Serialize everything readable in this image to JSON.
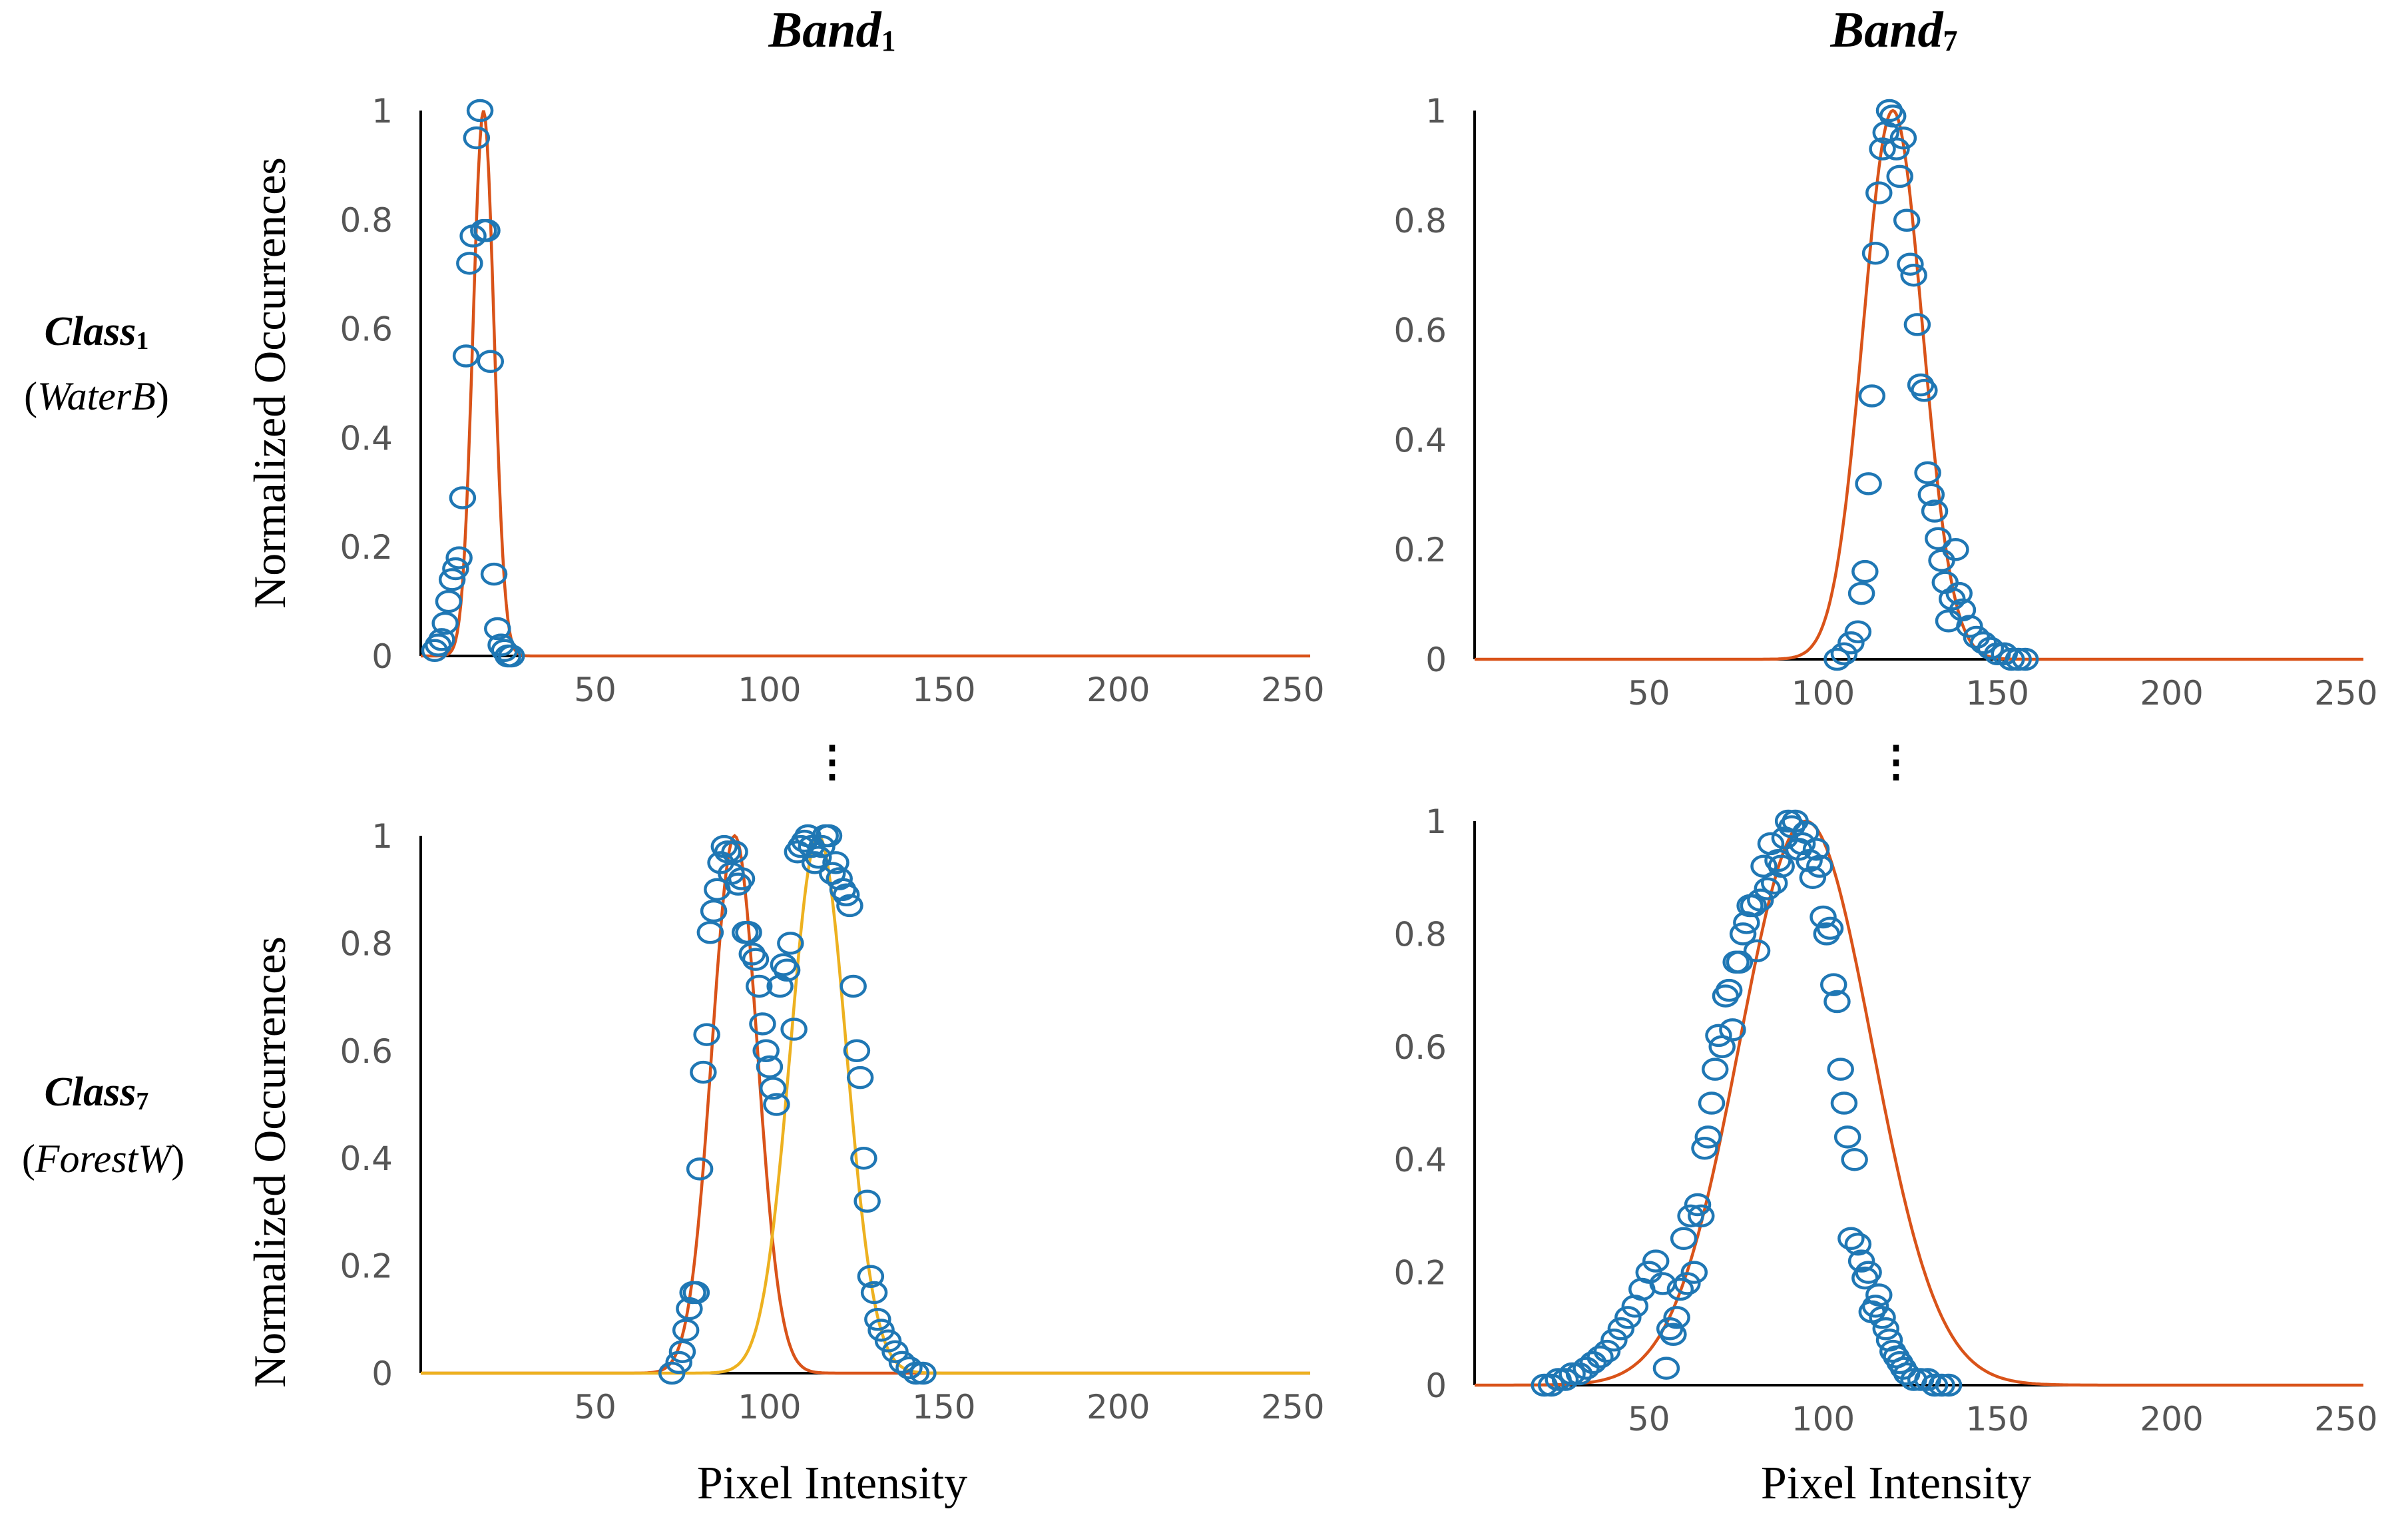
{
  "figure": {
    "col_titles": [
      {
        "main": "Band",
        "sub": "1"
      },
      {
        "main": "Band",
        "sub": "7"
      }
    ],
    "row_titles": [
      {
        "main": "Class",
        "sub": "1",
        "open": "(",
        "name": "WaterB",
        "close": ")"
      },
      {
        "main": "Class",
        "sub": "7",
        "open": "(",
        "name": "ForestW",
        "close": ")"
      }
    ],
    "ylabel": "Normalized Occurrences",
    "xlabel": "Pixel Intensity",
    "ellipsis": "⋮",
    "colors": {
      "points": "#1f77b4",
      "fit1": "#d95319",
      "fit2": "#edb120",
      "axis": "#000000"
    }
  },
  "chart_data": [
    {
      "type": "scatter",
      "title": "Class1 (WaterB) - Band1",
      "xlim": [
        0,
        255
      ],
      "ylim": [
        0,
        1
      ],
      "xticks": [
        50,
        100,
        150,
        200,
        250
      ],
      "yticks": [
        0,
        0.2,
        0.4,
        0.6,
        0.8,
        1
      ],
      "series": [
        {
          "name": "Normalized histogram",
          "kind": "points",
          "x": [
            4,
            5,
            6,
            7,
            8,
            9,
            10,
            11,
            12,
            13,
            14,
            15,
            16,
            17,
            18,
            19,
            20,
            21,
            22,
            23,
            24,
            25,
            26
          ],
          "y": [
            0.01,
            0.02,
            0.03,
            0.06,
            0.1,
            0.14,
            0.16,
            0.18,
            0.29,
            0.55,
            0.72,
            0.77,
            0.95,
            1.0,
            0.78,
            0.78,
            0.54,
            0.15,
            0.05,
            0.02,
            0.01,
            0.0,
            0.0
          ]
        },
        {
          "name": "Gaussian fit",
          "kind": "gaussian",
          "mu": 18,
          "sigma": 3.0,
          "amp": 1
        }
      ]
    },
    {
      "type": "scatter",
      "title": "Class1 (WaterB) - Band7",
      "xlim": [
        0,
        255
      ],
      "ylim": [
        0,
        1
      ],
      "xticks": [
        50,
        100,
        150,
        200,
        250
      ],
      "yticks": [
        0,
        0.2,
        0.4,
        0.6,
        0.8,
        1
      ],
      "series": [
        {
          "name": "Normalized histogram",
          "kind": "points",
          "x": [
            104,
            106,
            108,
            110,
            111,
            112,
            113,
            114,
            115,
            116,
            117,
            118,
            119,
            120,
            121,
            122,
            123,
            124,
            125,
            126,
            127,
            128,
            129,
            130,
            131,
            132,
            133,
            134,
            135,
            136,
            137,
            138,
            139,
            140,
            142,
            144,
            146,
            148,
            150,
            152,
            154,
            156,
            158
          ],
          "y": [
            0.0,
            0.01,
            0.03,
            0.05,
            0.12,
            0.16,
            0.32,
            0.48,
            0.74,
            0.85,
            0.93,
            0.96,
            1.0,
            0.99,
            0.93,
            0.88,
            0.95,
            0.8,
            0.72,
            0.7,
            0.61,
            0.5,
            0.49,
            0.34,
            0.3,
            0.27,
            0.22,
            0.18,
            0.14,
            0.07,
            0.11,
            0.2,
            0.12,
            0.09,
            0.06,
            0.04,
            0.03,
            0.02,
            0.01,
            0.01,
            0.0,
            0.0,
            0.0
          ]
        },
        {
          "name": "Gaussian fit",
          "kind": "gaussian",
          "mu": 120,
          "sigma": 8.5,
          "amp": 1
        }
      ]
    },
    {
      "type": "scatter",
      "title": "Class7 (ForestW) - Band1",
      "xlim": [
        0,
        255
      ],
      "ylim": [
        0,
        1
      ],
      "xticks": [
        50,
        100,
        150,
        200,
        250
      ],
      "yticks": [
        0,
        0.2,
        0.4,
        0.6,
        0.8,
        1
      ],
      "series": [
        {
          "name": "Normalized histogram",
          "kind": "points",
          "x": [
            72,
            74,
            75,
            76,
            77,
            78,
            79,
            80,
            81,
            82,
            83,
            84,
            85,
            86,
            87,
            88,
            89,
            90,
            91,
            92,
            93,
            94,
            95,
            96,
            97,
            98,
            99,
            100,
            101,
            102,
            103,
            104,
            105,
            106,
            107,
            108,
            109,
            110,
            111,
            112,
            113,
            114,
            115,
            116,
            117,
            118,
            119,
            120,
            121,
            122,
            123,
            124,
            125,
            126,
            127,
            128,
            129,
            130,
            131,
            132,
            134,
            136,
            138,
            140,
            142,
            144
          ],
          "y": [
            0.0,
            0.02,
            0.04,
            0.08,
            0.12,
            0.15,
            0.15,
            0.38,
            0.56,
            0.63,
            0.82,
            0.86,
            0.9,
            0.95,
            0.98,
            0.97,
            0.93,
            0.97,
            0.91,
            0.92,
            0.82,
            0.82,
            0.78,
            0.77,
            0.72,
            0.65,
            0.6,
            0.57,
            0.53,
            0.5,
            0.72,
            0.76,
            0.75,
            0.8,
            0.64,
            0.97,
            0.98,
            0.99,
            1.0,
            0.98,
            0.95,
            0.96,
            0.98,
            1.0,
            1.0,
            0.93,
            0.95,
            0.92,
            0.9,
            0.89,
            0.87,
            0.72,
            0.6,
            0.55,
            0.4,
            0.32,
            0.18,
            0.15,
            0.1,
            0.08,
            0.06,
            0.04,
            0.02,
            0.01,
            0.0,
            0.0
          ]
        },
        {
          "name": "Gaussian fit 1",
          "kind": "gaussian",
          "mu": 90,
          "sigma": 6.5,
          "amp": 1
        },
        {
          "name": "Gaussian fit 2",
          "kind": "gaussian",
          "mu": 114,
          "sigma": 8.0,
          "amp": 1
        }
      ]
    },
    {
      "type": "scatter",
      "title": "Class7 (ForestW) - Band7",
      "xlim": [
        0,
        255
      ],
      "ylim": [
        0,
        1
      ],
      "xticks": [
        50,
        100,
        150,
        200,
        250
      ],
      "yticks": [
        0,
        0.2,
        0.4,
        0.6,
        0.8,
        1
      ],
      "series": [
        {
          "name": "Normalized histogram",
          "kind": "points",
          "x": [
            20,
            22,
            24,
            26,
            28,
            30,
            32,
            34,
            36,
            38,
            40,
            42,
            44,
            46,
            48,
            50,
            52,
            54,
            55,
            56,
            57,
            58,
            59,
            60,
            61,
            62,
            63,
            64,
            65,
            66,
            67,
            68,
            69,
            70,
            71,
            72,
            73,
            74,
            75,
            76,
            77,
            78,
            79,
            80,
            81,
            82,
            83,
            84,
            85,
            86,
            87,
            88,
            89,
            90,
            91,
            92,
            93,
            94,
            95,
            96,
            97,
            98,
            99,
            100,
            101,
            102,
            103,
            104,
            105,
            106,
            107,
            108,
            109,
            110,
            111,
            112,
            113,
            114,
            115,
            116,
            117,
            118,
            119,
            120,
            121,
            122,
            123,
            124,
            126,
            128,
            130,
            132,
            134,
            136
          ],
          "y": [
            0.0,
            0.0,
            0.01,
            0.01,
            0.02,
            0.02,
            0.03,
            0.04,
            0.05,
            0.06,
            0.08,
            0.1,
            0.12,
            0.14,
            0.17,
            0.2,
            0.22,
            0.18,
            0.03,
            0.1,
            0.09,
            0.12,
            0.17,
            0.26,
            0.18,
            0.3,
            0.2,
            0.32,
            0.3,
            0.42,
            0.44,
            0.5,
            0.56,
            0.62,
            0.6,
            0.69,
            0.7,
            0.63,
            0.75,
            0.75,
            0.8,
            0.82,
            0.85,
            0.85,
            0.77,
            0.86,
            0.92,
            0.88,
            0.96,
            0.89,
            0.93,
            0.92,
            0.97,
            1.0,
            0.99,
            1.0,
            0.95,
            0.96,
            0.98,
            0.93,
            0.9,
            0.95,
            0.92,
            0.83,
            0.8,
            0.81,
            0.71,
            0.68,
            0.56,
            0.5,
            0.44,
            0.26,
            0.4,
            0.25,
            0.22,
            0.19,
            0.2,
            0.13,
            0.14,
            0.16,
            0.12,
            0.1,
            0.08,
            0.06,
            0.05,
            0.04,
            0.03,
            0.02,
            0.01,
            0.01,
            0.01,
            0.0,
            0.0,
            0.0
          ],
          "comment": ""
        },
        {
          "name": "Gaussian fit",
          "kind": "gaussian",
          "mu": 95,
          "sigma": 19.0,
          "amp": 1
        }
      ]
    }
  ]
}
